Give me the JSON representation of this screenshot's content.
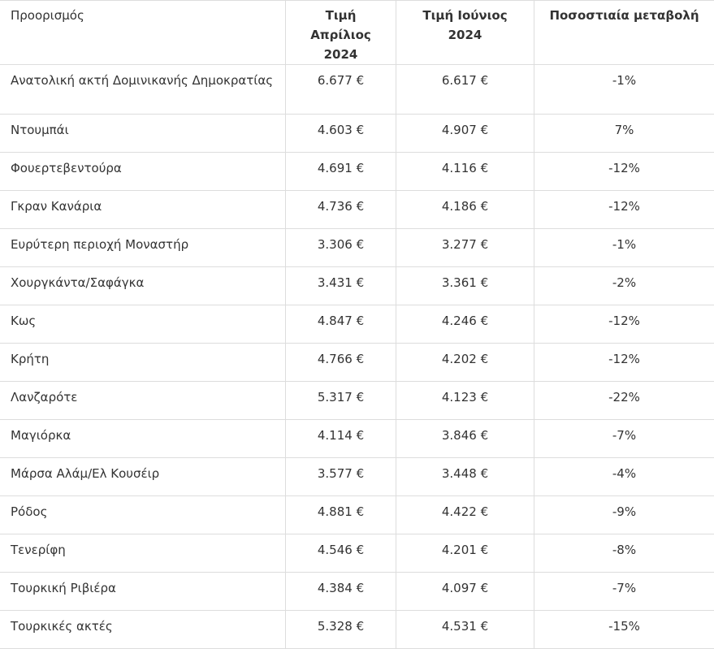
{
  "table": {
    "headers": [
      "Προορισμός",
      "Τιμή Απρίλιος 2024",
      "Τιμή Ιούνιος 2024",
      "Ποσοστιαία μεταβολή"
    ],
    "rows": [
      [
        "Ανατολική ακτή Δομινικανής Δημοκρατίας",
        "6.677 €",
        "6.617 €",
        "-1%"
      ],
      [
        "Ντουμπάι",
        "4.603 €",
        "4.907 €",
        "7%"
      ],
      [
        "Φουερτεβεντούρα",
        "4.691 €",
        "4.116 €",
        "-12%"
      ],
      [
        "Γκραν Κανάρια",
        "4.736 €",
        "4.186 €",
        "-12%"
      ],
      [
        "Ευρύτερη περιοχή Μοναστήρ",
        "3.306 €",
        "3.277 €",
        "-1%"
      ],
      [
        "Χουργκάντα/Σαφάγκα",
        "3.431 €",
        "3.361 €",
        "-2%"
      ],
      [
        "Κως",
        "4.847 €",
        "4.246 €",
        "-12%"
      ],
      [
        "Κρήτη",
        "4.766 €",
        "4.202 €",
        "-12%"
      ],
      [
        "Λανζαρότε",
        "5.317 €",
        "4.123 €",
        "-22%"
      ],
      [
        "Μαγιόρκα",
        "4.114 €",
        "3.846 €",
        "-7%"
      ],
      [
        "Μάρσα Αλάμ/Ελ Κουσέιρ",
        "3.577 €",
        "3.448 €",
        "-4%"
      ],
      [
        "Ρόδος",
        "4.881 €",
        "4.422 €",
        "-9%"
      ],
      [
        "Τενερίφη",
        "4.546 €",
        "4.201 €",
        "-8%"
      ],
      [
        "Τουρκική Ριβιέρα",
        "4.384 €",
        "4.097 €",
        "-7%"
      ],
      [
        "Τουρκικές ακτές",
        "5.328 €",
        "4.531 €",
        "-15%"
      ]
    ]
  },
  "colors": {
    "text": "#333333",
    "border": "#dddddd",
    "background": "#ffffff"
  }
}
